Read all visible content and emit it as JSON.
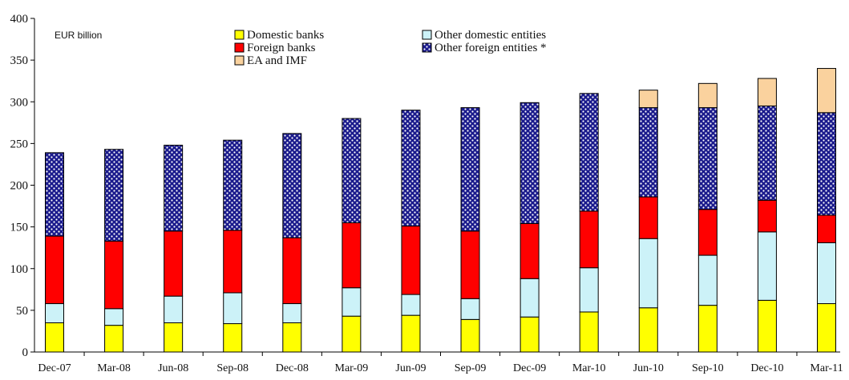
{
  "chart_data": {
    "type": "bar",
    "stacked": true,
    "unit_label": "EUR billion",
    "title": "",
    "xlabel": "",
    "ylabel": "",
    "ylim": [
      0,
      400
    ],
    "yticks": [
      0,
      50,
      100,
      150,
      200,
      250,
      300,
      350,
      400
    ],
    "categories": [
      "Dec-07",
      "Mar-08",
      "Jun-08",
      "Sep-08",
      "Dec-08",
      "Mar-09",
      "Jun-09",
      "Sep-09",
      "Dec-09",
      "Mar-10",
      "Jun-10",
      "Sep-10",
      "Dec-10",
      "Mar-11"
    ],
    "series": [
      {
        "name": "Domestic banks",
        "color": "#ffff00",
        "pattern": "solid",
        "values": [
          35,
          32,
          35,
          34,
          35,
          43,
          44,
          39,
          42,
          48,
          53,
          56,
          62,
          58
        ]
      },
      {
        "name": "Other domestic entities",
        "color": "#ccf2f8",
        "pattern": "solid",
        "values": [
          23,
          20,
          32,
          37,
          23,
          34,
          25,
          25,
          46,
          53,
          83,
          60,
          82,
          73
        ]
      },
      {
        "name": "Foreign banks",
        "color": "#ff0000",
        "pattern": "solid",
        "values": [
          81,
          81,
          78,
          75,
          79,
          78,
          82,
          81,
          66,
          68,
          50,
          55,
          38,
          33
        ]
      },
      {
        "name": "Other foreign entities *",
        "color": "#1a1a8c",
        "pattern": "dots",
        "values": [
          100,
          110,
          103,
          108,
          125,
          125,
          139,
          148,
          145,
          141,
          107,
          122,
          113,
          123
        ]
      },
      {
        "name": "EA and IMF",
        "color": "#fad29e",
        "pattern": "solid",
        "values": [
          0,
          0,
          0,
          0,
          0,
          0,
          0,
          0,
          0,
          0,
          21,
          29,
          33,
          53
        ]
      }
    ],
    "legend_order": [
      [
        "Domestic banks",
        "Other domestic entities"
      ],
      [
        "Foreign banks",
        "Other foreign entities *"
      ],
      [
        "EA and IMF"
      ]
    ],
    "legend_placement": "top-center",
    "grid": false
  }
}
